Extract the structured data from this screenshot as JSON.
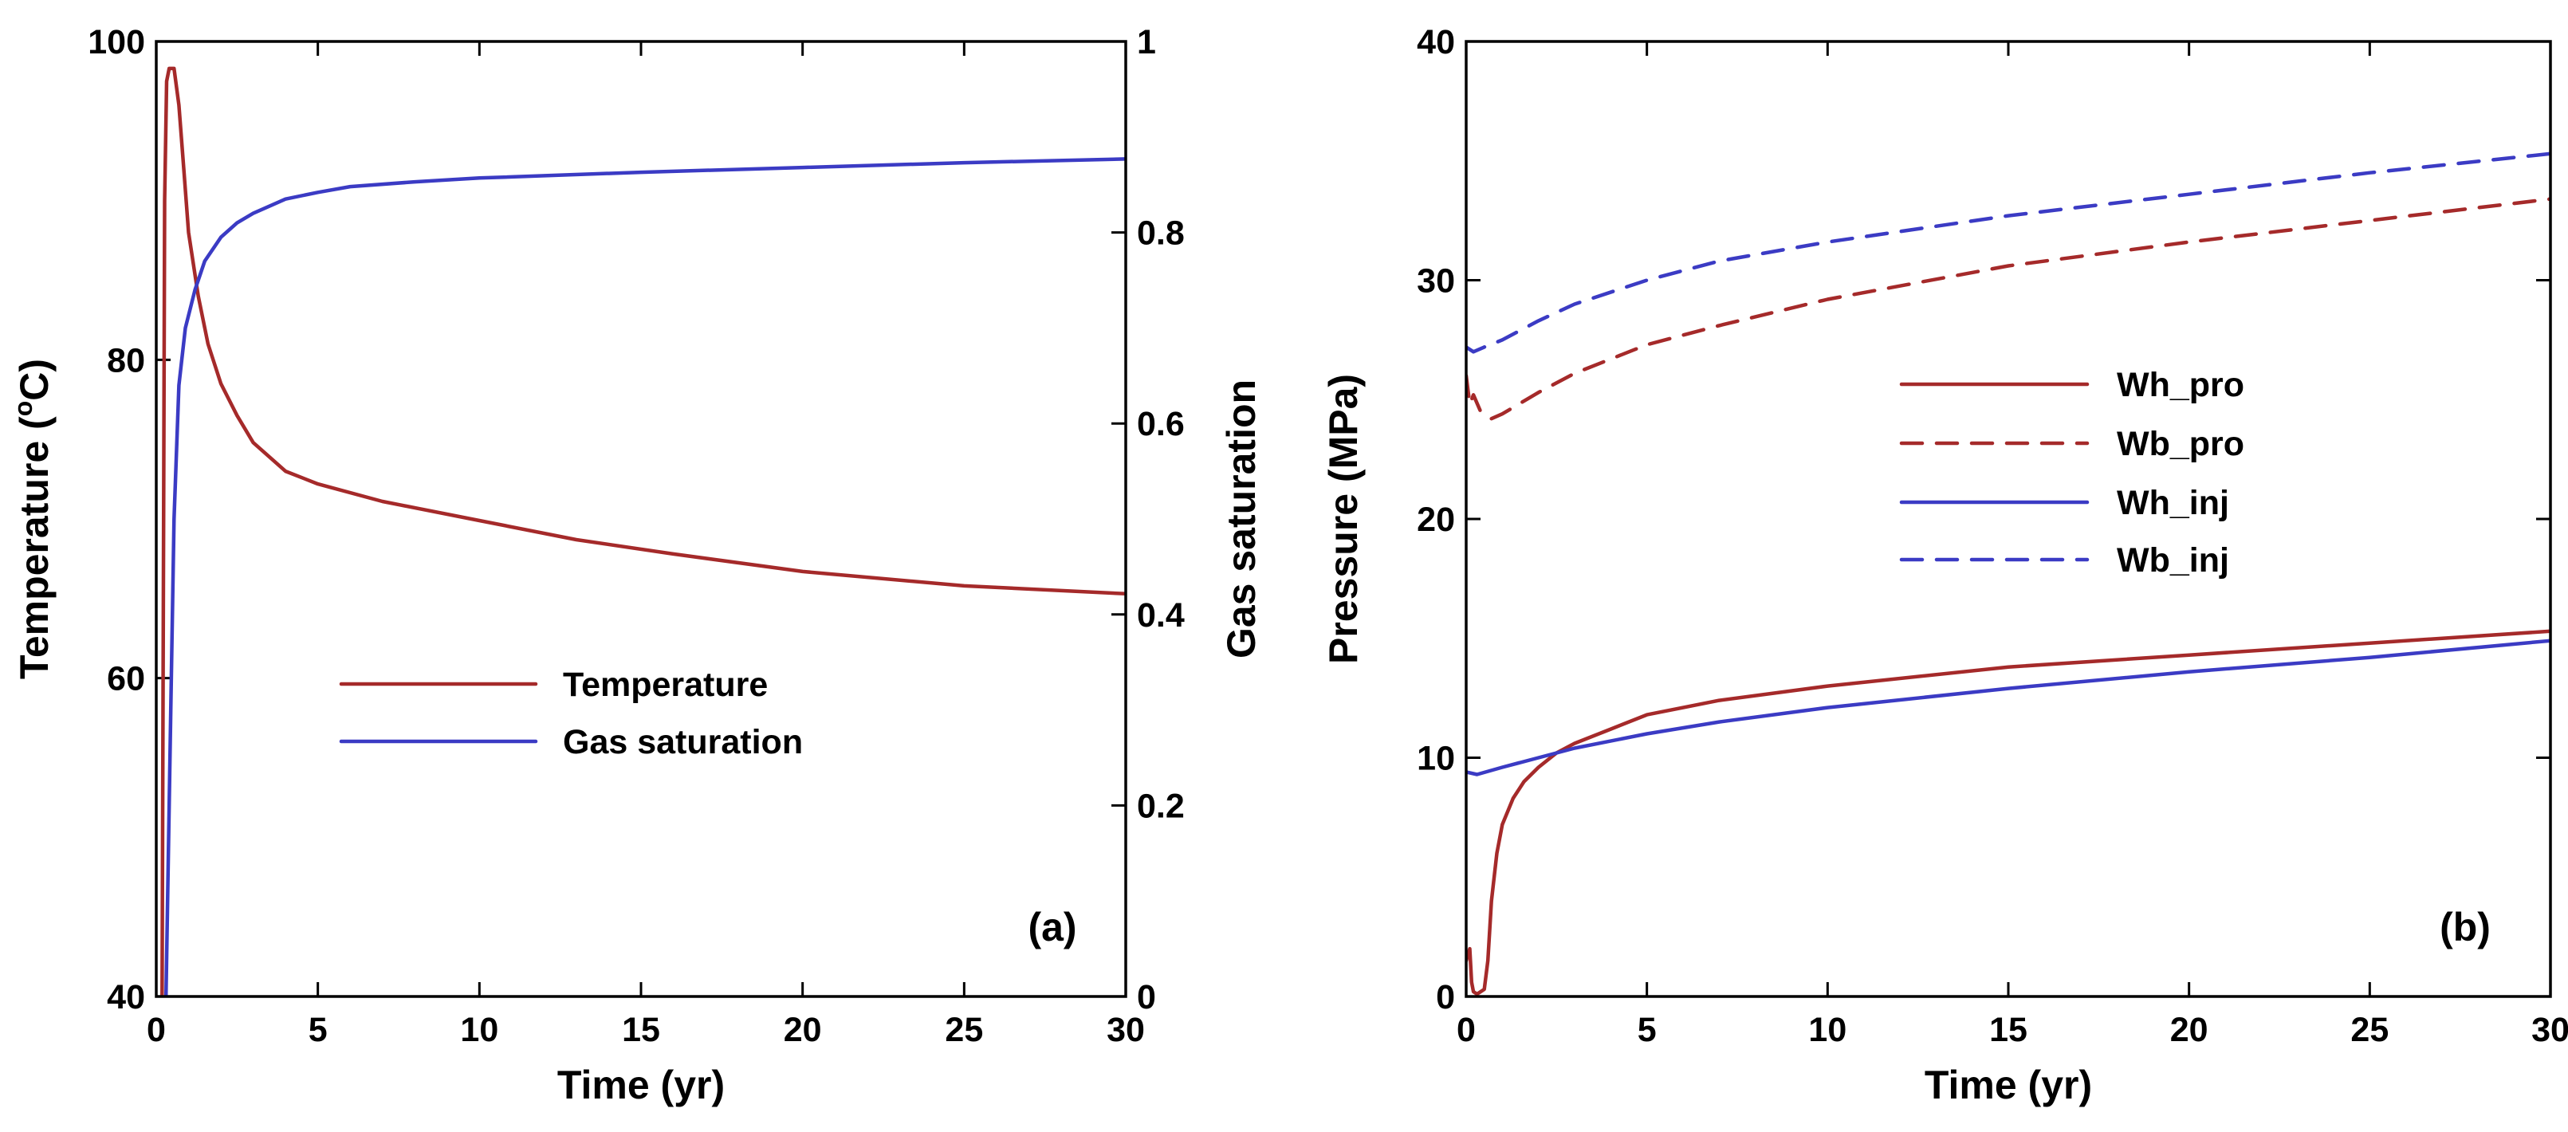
{
  "colors": {
    "red": "#A52A2A",
    "blue": "#3B3BC4"
  },
  "chart_data": [
    {
      "panel": "(a)",
      "type": "line",
      "xlabel": "Time (yr)",
      "ylabel_left": "Temperature (oC)",
      "ylabel_left_parts": {
        "pre": "Temperature (",
        "sup": "o",
        "post": "C)"
      },
      "ylabel_right": "Gas saturation",
      "xlim": [
        0,
        30
      ],
      "ylim_left": [
        40,
        100
      ],
      "ylim_right": [
        0,
        1
      ],
      "xticks": [
        0,
        5,
        10,
        15,
        20,
        25,
        30
      ],
      "xtick_labels": [
        "0",
        "5",
        "10",
        "15",
        "20",
        "25",
        "30"
      ],
      "yticks_left": [
        40,
        60,
        80,
        100
      ],
      "ytick_labels_left": [
        "40",
        "60",
        "80",
        "100"
      ],
      "yticks_right": [
        0,
        0.2,
        0.4,
        0.6,
        0.8,
        1
      ],
      "ytick_labels_right": [
        "0",
        "0.2",
        "0.4",
        "0.6",
        "0.8",
        "1"
      ],
      "legend_position": "center-left",
      "series": [
        {
          "name": "Temperature",
          "axis": "left",
          "color": "#A52A2A",
          "dash": "solid",
          "x": [
            0.18,
            0.26,
            0.32,
            0.4,
            0.55,
            0.7,
            0.85,
            1.0,
            1.3,
            1.6,
            2.0,
            2.5,
            3.0,
            4.0,
            5.0,
            7.0,
            10.0,
            13.0,
            16.0,
            20.0,
            25.0,
            30.0
          ],
          "y": [
            40,
            90,
            97.5,
            98.3,
            98.3,
            96,
            92,
            88,
            84,
            81,
            78.5,
            76.5,
            74.8,
            73,
            72.2,
            71.1,
            69.9,
            68.7,
            67.8,
            66.7,
            65.8,
            65.3
          ]
        },
        {
          "name": "Gas saturation",
          "axis": "right",
          "color": "#3B3BC4",
          "dash": "solid",
          "x": [
            0.3,
            0.45,
            0.55,
            0.7,
            0.9,
            1.2,
            1.5,
            2.0,
            2.5,
            3.0,
            4.0,
            5.0,
            6.0,
            8.0,
            10.0,
            15.0,
            20.0,
            25.0,
            30.0
          ],
          "y": [
            0.0,
            0.3,
            0.5,
            0.64,
            0.7,
            0.74,
            0.77,
            0.795,
            0.81,
            0.82,
            0.835,
            0.842,
            0.848,
            0.853,
            0.857,
            0.863,
            0.868,
            0.873,
            0.877
          ]
        }
      ]
    },
    {
      "panel": "(b)",
      "type": "line",
      "xlabel": "Time (yr)",
      "ylabel": "Pressure (MPa)",
      "xlim": [
        0,
        30
      ],
      "ylim": [
        0,
        40
      ],
      "xticks": [
        0,
        5,
        10,
        15,
        20,
        25,
        30
      ],
      "xtick_labels": [
        "0",
        "5",
        "10",
        "15",
        "20",
        "25",
        "30"
      ],
      "yticks": [
        0,
        10,
        20,
        30,
        40
      ],
      "ytick_labels": [
        "0",
        "10",
        "20",
        "30",
        "40"
      ],
      "legend_position": "upper-right",
      "series": [
        {
          "name": "Wh_pro",
          "color": "#A52A2A",
          "dash": "solid",
          "x": [
            0.0,
            0.1,
            0.15,
            0.2,
            0.3,
            0.5,
            0.6,
            0.7,
            0.85,
            1.0,
            1.3,
            1.6,
            2.0,
            2.5,
            3.0,
            4.0,
            5.0,
            7.0,
            10.0,
            15.0,
            20.0,
            25.0,
            30.0
          ],
          "y": [
            1.5,
            2.0,
            0.6,
            0.2,
            0.1,
            0.3,
            1.5,
            4.0,
            6.0,
            7.2,
            8.3,
            9.0,
            9.6,
            10.2,
            10.6,
            11.2,
            11.8,
            12.4,
            13.0,
            13.8,
            14.3,
            14.8,
            15.3
          ]
        },
        {
          "name": "Wb_pro",
          "color": "#A52A2A",
          "dash": "dashed",
          "x": [
            0.0,
            0.1,
            0.2,
            0.4,
            0.7,
            1.0,
            2.0,
            3.0,
            5.0,
            7.0,
            10.0,
            15.0,
            20.0,
            25.0,
            30.0
          ],
          "y": [
            26.0,
            24.8,
            25.2,
            24.5,
            24.2,
            24.4,
            25.3,
            26.1,
            27.3,
            28.1,
            29.2,
            30.6,
            31.6,
            32.5,
            33.4
          ]
        },
        {
          "name": "Wh_inj",
          "color": "#3B3BC4",
          "dash": "solid",
          "x": [
            0.0,
            0.3,
            1.0,
            2.0,
            3.0,
            5.0,
            7.0,
            10.0,
            15.0,
            20.0,
            25.0,
            30.0
          ],
          "y": [
            9.4,
            9.3,
            9.6,
            10.0,
            10.4,
            11.0,
            11.5,
            12.1,
            12.9,
            13.6,
            14.2,
            14.9
          ]
        },
        {
          "name": "Wb_inj",
          "color": "#3B3BC4",
          "dash": "dashed",
          "x": [
            0.0,
            0.2,
            0.5,
            1.0,
            2.0,
            3.0,
            5.0,
            7.0,
            10.0,
            15.0,
            20.0,
            25.0,
            30.0
          ],
          "y": [
            27.2,
            27.0,
            27.2,
            27.5,
            28.3,
            29.0,
            30.0,
            30.8,
            31.6,
            32.7,
            33.6,
            34.5,
            35.3
          ]
        }
      ]
    }
  ]
}
